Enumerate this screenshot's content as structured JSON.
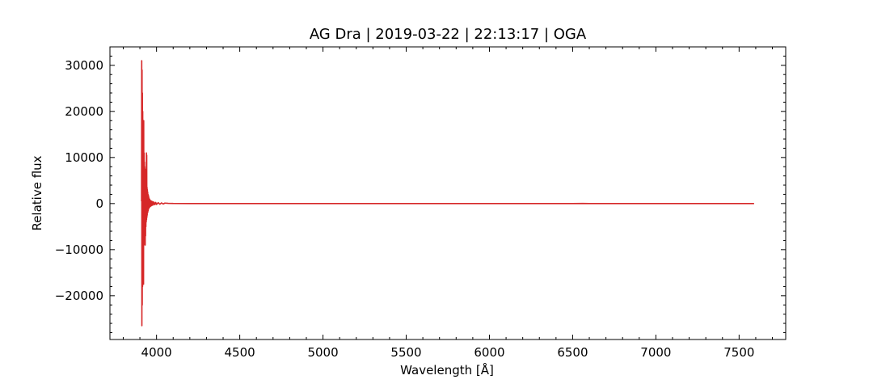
{
  "chart_data": {
    "type": "line",
    "title": "AG Dra | 2019-03-22 | 22:13:17 | OGA",
    "xlabel": "Wavelength [Å]",
    "ylabel": "Relative flux",
    "xlim": [
      3720,
      7780
    ],
    "ylim": [
      -29500,
      34000
    ],
    "xticks": [
      4000,
      4500,
      5000,
      5500,
      6000,
      6500,
      7000,
      7500
    ],
    "yticks": [
      -20000,
      -10000,
      0,
      10000,
      20000,
      30000
    ],
    "xtick_labels": [
      "4000",
      "4500",
      "5000",
      "5500",
      "6000",
      "6500",
      "7000",
      "7500"
    ],
    "ytick_labels": [
      "−20000",
      "−10000",
      "0",
      "10000",
      "20000",
      "30000"
    ],
    "grid": false,
    "series": [
      {
        "color": "#d62728",
        "x": [
          3910,
          3911,
          3912,
          3913,
          3914,
          3915,
          3916,
          3917,
          3918,
          3919,
          3920,
          3921,
          3922,
          3923,
          3924,
          3925,
          3926,
          3927,
          3928,
          3929,
          3930,
          3931,
          3932,
          3933,
          3934,
          3935,
          3936,
          3937,
          3938,
          3939,
          3940,
          3941,
          3942,
          3943,
          3944,
          3945,
          3946,
          3947,
          3948,
          3949,
          3950,
          3951,
          3952,
          3953,
          3954,
          3955,
          3956,
          3957,
          3958,
          3959,
          3960,
          3962,
          3964,
          3966,
          3968,
          3970,
          3972,
          3974,
          3976,
          3978,
          3980,
          3985,
          3990,
          3995,
          4000,
          4010,
          4020,
          4030,
          4040,
          4050,
          4070,
          4100,
          4200,
          4500,
          5000,
          5500,
          6000,
          6500,
          6560,
          6600,
          7000,
          7500,
          7590
        ],
        "y": [
          500,
          31000,
          -26500,
          29000,
          -22000,
          24000,
          -18000,
          20000,
          -15000,
          13000,
          -12000,
          10000,
          -17500,
          18000,
          -9000,
          11000,
          -8000,
          9000,
          -7000,
          8000,
          -6000,
          7500,
          -9000,
          5000,
          -7000,
          6000,
          -5000,
          4500,
          -4000,
          11000,
          -3500,
          10500,
          -3000,
          3500,
          -2500,
          3000,
          -2000,
          2500,
          -1800,
          2000,
          -1500,
          1800,
          -1200,
          1500,
          -1000,
          1200,
          -900,
          1000,
          -800,
          900,
          -700,
          700,
          -600,
          600,
          -500,
          500,
          -400,
          450,
          -350,
          400,
          -300,
          300,
          -250,
          250,
          -200,
          200,
          -150,
          150,
          -100,
          100,
          50,
          20,
          10,
          0,
          0,
          0,
          0,
          0,
          30,
          0,
          0,
          0,
          0
        ]
      }
    ]
  }
}
